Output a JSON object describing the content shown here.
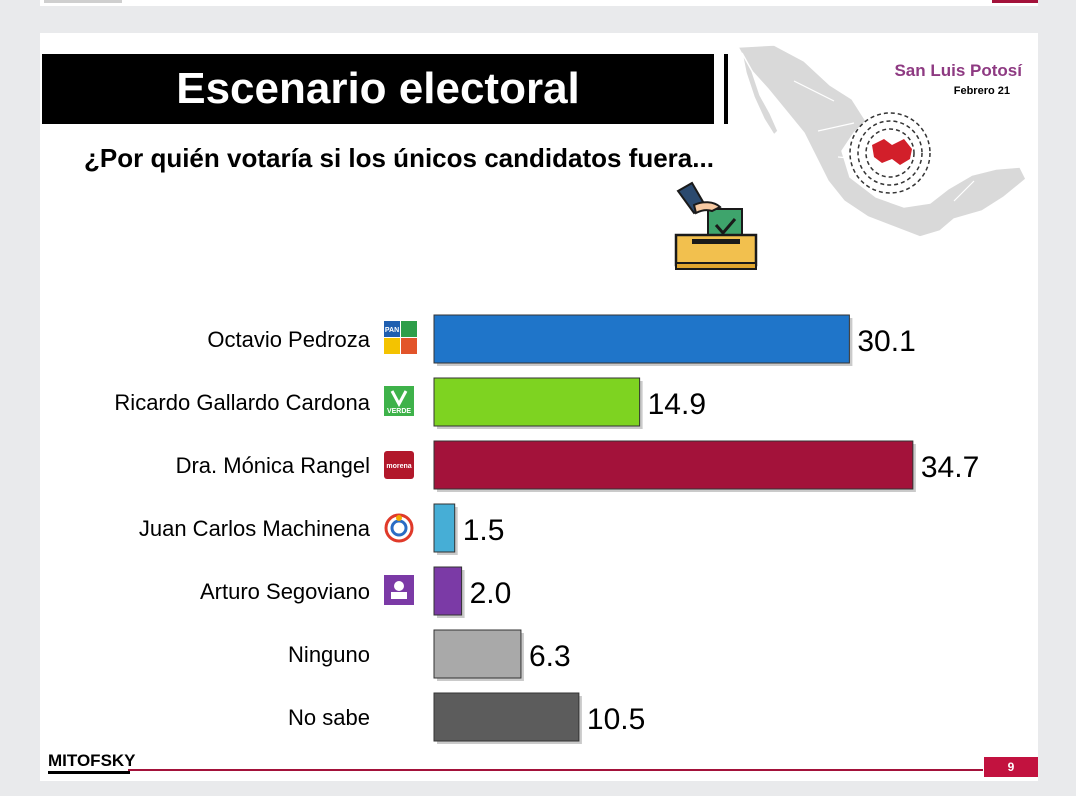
{
  "header": {
    "title": "Escenario electoral",
    "question": "¿Por quién votaría si los únicos candidatos fuera...",
    "state": "San Luis Potosí",
    "date": "Febrero 21"
  },
  "footer": {
    "logo": "MITOFSKY",
    "page": "9"
  },
  "colors": {
    "title_bg": "#000000",
    "accent": "#a3123a",
    "state_text": "#8e3a82"
  },
  "chart_data": {
    "type": "bar",
    "orientation": "horizontal",
    "categories": [
      "Octavio Pedroza",
      "Ricardo Gallardo Cardona",
      "Dra. Mónica Rangel",
      "Juan Carlos Machinena",
      "Arturo Segoviano",
      "Ninguno",
      "No sabe"
    ],
    "values": [
      30.1,
      14.9,
      34.7,
      1.5,
      2.0,
      6.3,
      10.5
    ],
    "value_labels": [
      "30.1",
      "14.9",
      "34.7",
      "1.5",
      "2.0",
      "6.3",
      "10.5"
    ],
    "colors": [
      "#1f75c9",
      "#7ed321",
      "#a3123a",
      "#46aed6",
      "#7b3aa6",
      "#a9a9a9",
      "#5c5c5c"
    ],
    "party_icons": [
      "pan-pri-prd-cp-coalition-icon",
      "verde-icon",
      "morena-icon",
      "rsp-icon",
      "independiente-icon",
      "",
      ""
    ],
    "party_icon_texts": [
      "PAN",
      "VERDE",
      "morena",
      "",
      "",
      "",
      ""
    ],
    "xlim": [
      0,
      36
    ],
    "grid": false,
    "legend": "none"
  }
}
